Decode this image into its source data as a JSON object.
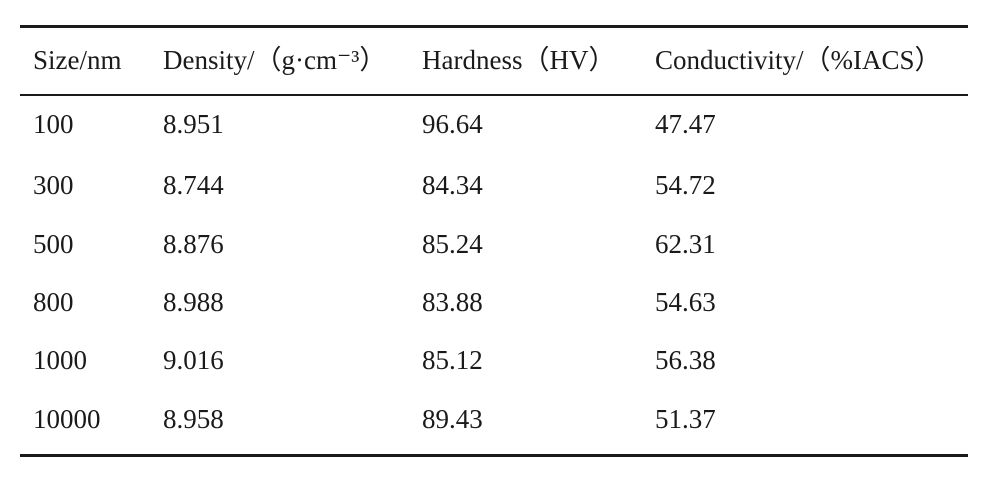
{
  "table": {
    "header": [
      "Size/nm",
      "Density/（g·cm⁻³）",
      "Hardness（HV）",
      "Conductivity/（%IACS）"
    ],
    "rows": [
      [
        "100",
        "8.951",
        "96.64",
        "47.47"
      ],
      [
        "300",
        "8.744",
        "84.34",
        "54.72"
      ],
      [
        "500",
        "8.876",
        "85.24",
        "62.31"
      ],
      [
        "800",
        "8.988",
        "83.88",
        "54.63"
      ],
      [
        "1000",
        "9.016",
        "85.12",
        "56.38"
      ],
      [
        "10000",
        "8.958",
        "89.43",
        "51.37"
      ]
    ]
  }
}
